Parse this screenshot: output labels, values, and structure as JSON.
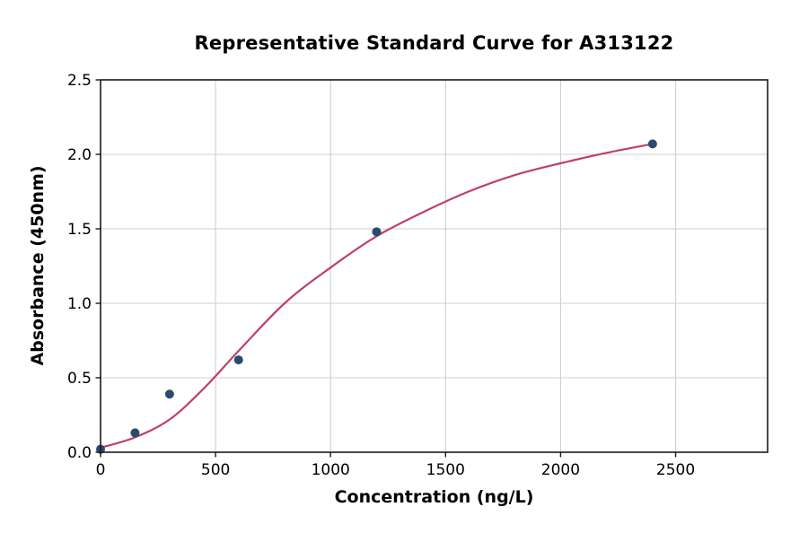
{
  "chart_data": {
    "type": "scatter",
    "title": "Representative Standard Curve for A313122",
    "xlabel": "Concentration (ng/L)",
    "ylabel": "Absorbance (450nm)",
    "xlim": [
      0,
      2900
    ],
    "ylim": [
      0,
      2.5
    ],
    "x_ticks": [
      0,
      500,
      1000,
      1500,
      2000,
      2500
    ],
    "x_tick_labels": [
      "0",
      "500",
      "1000",
      "1500",
      "2000",
      "2500"
    ],
    "y_ticks": [
      0,
      0.5,
      1.0,
      1.5,
      2.0,
      2.5
    ],
    "y_tick_labels": [
      "0.0",
      "0.5",
      "1.0",
      "1.5",
      "2.0",
      "2.5"
    ],
    "grid": true,
    "legend": "none",
    "series": [
      {
        "name": "standard-points",
        "type": "scatter",
        "marker": "circle",
        "color": "#2a4b6d",
        "points": [
          [
            0,
            0.02
          ],
          [
            150,
            0.13
          ],
          [
            300,
            0.39
          ],
          [
            600,
            0.62
          ],
          [
            1200,
            1.48
          ],
          [
            2400,
            2.07
          ]
        ]
      },
      {
        "name": "fit-curve",
        "type": "line",
        "color": "#bd4265",
        "points": [
          [
            0,
            0.03
          ],
          [
            150,
            0.1
          ],
          [
            300,
            0.22
          ],
          [
            450,
            0.43
          ],
          [
            600,
            0.68
          ],
          [
            800,
            1.0
          ],
          [
            1000,
            1.24
          ],
          [
            1200,
            1.45
          ],
          [
            1400,
            1.61
          ],
          [
            1600,
            1.75
          ],
          [
            1800,
            1.86
          ],
          [
            2000,
            1.94
          ],
          [
            2200,
            2.01
          ],
          [
            2400,
            2.07
          ]
        ]
      }
    ],
    "colors": {
      "grid": "#cfcfcf",
      "spine": "#1a1a1a",
      "text": "#000000",
      "background": "#ffffff"
    }
  }
}
